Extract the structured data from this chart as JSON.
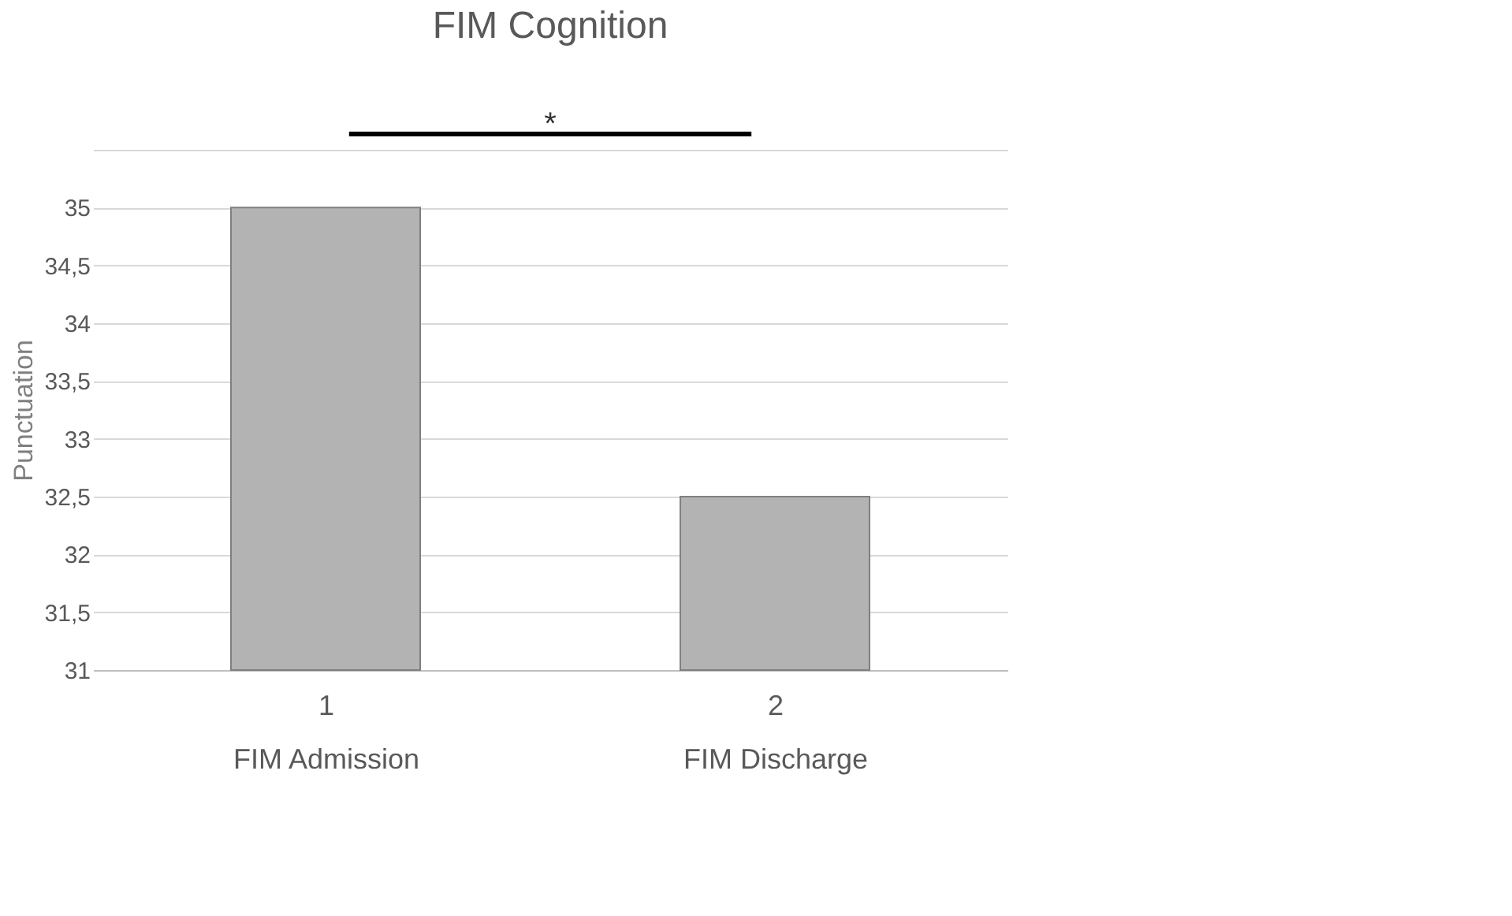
{
  "chart_data": {
    "type": "bar",
    "title": "FIM Cognition",
    "ylabel": "Punctuation",
    "categories": [
      "1\nFIM Admission",
      "2\nFIM Discharge"
    ],
    "values": [
      35,
      32.5
    ],
    "color": "#b3b3b3",
    "ylim": [
      31,
      35.5
    ],
    "yticks": [
      31,
      {
        "value": 31.5,
        "label": "31,5"
      },
      32,
      {
        "value": 32.5,
        "label": "32,5"
      },
      33,
      {
        "value": 33.5,
        "label": "33,5"
      },
      34,
      {
        "value": 34.5,
        "label": "34,5"
      },
      35,
      {
        "value": 35.5,
        "label": null
      }
    ],
    "grid": "y",
    "annotations": [
      "*"
    ]
  }
}
